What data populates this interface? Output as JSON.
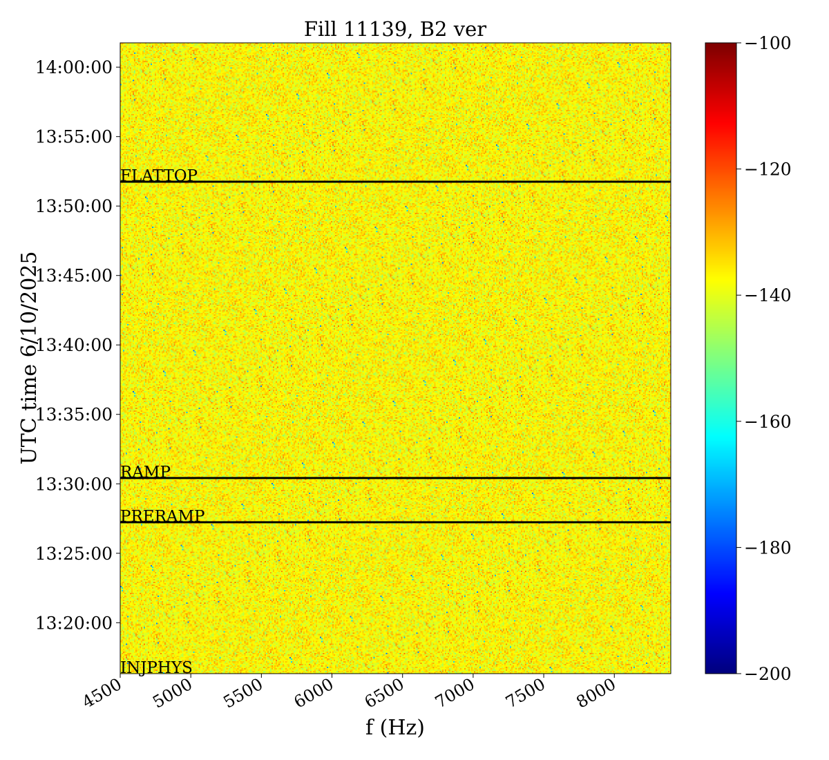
{
  "chart_data": {
    "type": "heatmap",
    "title": "Fill 11139, B2 ver",
    "xlabel": "f (Hz)",
    "ylabel": "UTC time 6/10/2025",
    "xlim": [
      4500,
      8400
    ],
    "x_ticks": [
      4500,
      5000,
      5500,
      6000,
      6500,
      7000,
      7500,
      8000
    ],
    "x_tick_labels": [
      "4500",
      "5000",
      "5500",
      "6000",
      "6500",
      "7000",
      "7500",
      "8000"
    ],
    "ylim": [
      "13:16:20",
      "14:01:45"
    ],
    "y_ticks": [
      "13:20:00",
      "13:25:00",
      "13:30:00",
      "13:35:00",
      "13:40:00",
      "13:45:00",
      "13:50:00",
      "13:55:00",
      "14:00:00"
    ],
    "y_tick_labels": [
      "13:20:00",
      "13:25:00",
      "13:30:00",
      "13:35:00",
      "13:40:00",
      "13:45:00",
      "13:50:00",
      "13:55:00",
      "14:00:00"
    ],
    "colormap": "jet",
    "clim": [
      -200,
      -100
    ],
    "colorbar_ticks": [
      -200,
      -180,
      -160,
      -140,
      -120,
      -100
    ],
    "colorbar_tick_labels": [
      "−200",
      "−180",
      "−160",
      "−140",
      "−120",
      "−100"
    ],
    "typical_value_range": [
      -155,
      -125
    ],
    "typical_value_mean": -137,
    "annotations": [
      {
        "label": "FLATTOP",
        "time": "13:51:45"
      },
      {
        "label": "RAMP",
        "time": "13:30:25"
      },
      {
        "label": "PRERAMP",
        "time": "13:27:14"
      },
      {
        "label": "INJPHYS",
        "time": "13:16:20"
      }
    ]
  }
}
